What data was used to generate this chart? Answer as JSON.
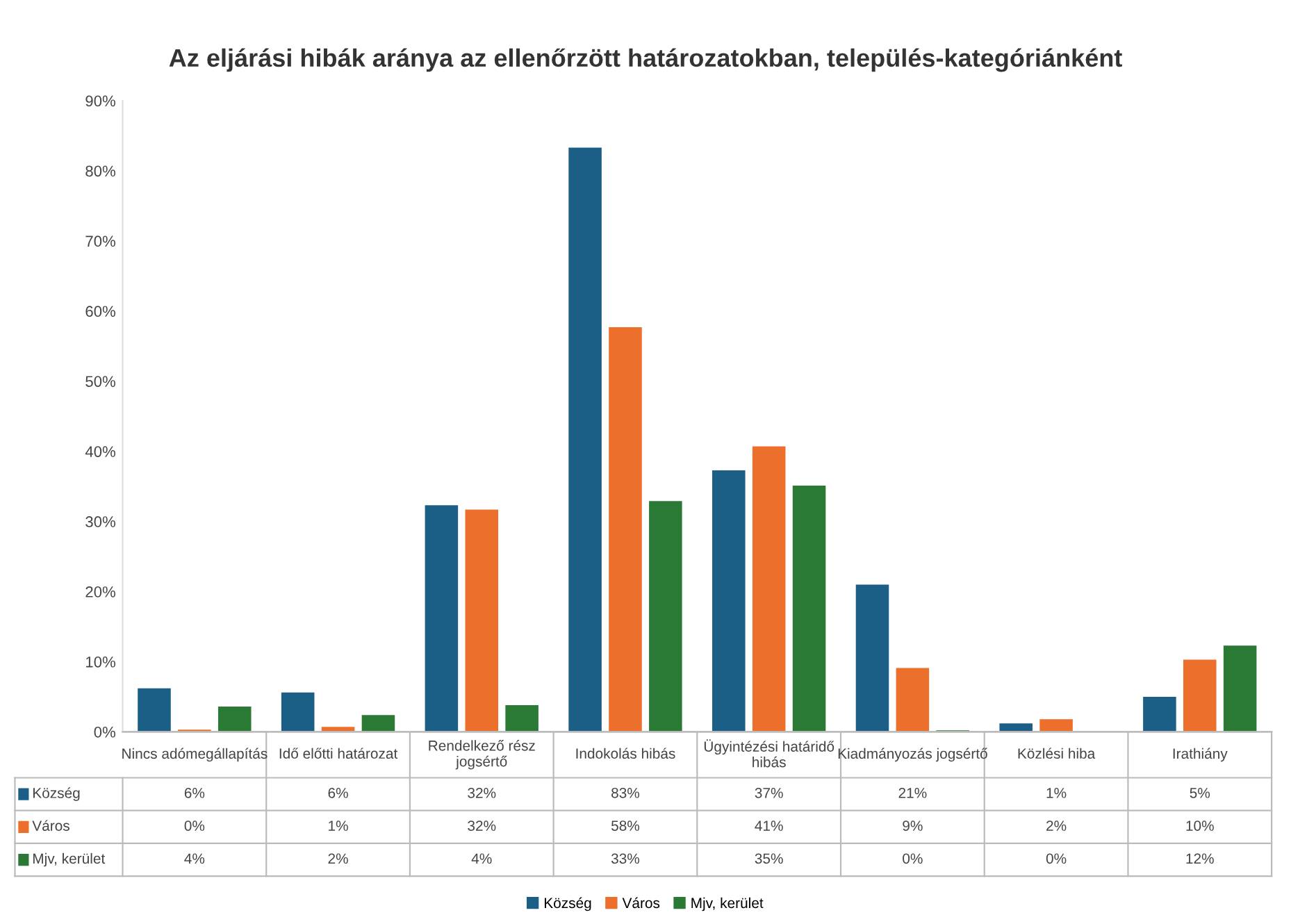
{
  "chart_data": {
    "type": "bar",
    "title": "Az eljárási hibák aránya az ellenőrzött határozatokban, település-kategóriánként",
    "categories": [
      "Nincs adómegállapítás",
      "Idő előtti határozat",
      "Rendelkező rész\njogsértő",
      "Indokolás hibás",
      "Ügyintézési határidő\nhibás",
      "Kiadmányozás jogsértő",
      "Közlési hiba",
      "Irathiány"
    ],
    "series": [
      {
        "name": "Község",
        "color": "#1b5e86",
        "values": [
          6.2,
          5.6,
          32.3,
          83.3,
          37.3,
          21.0,
          1.2,
          5.0
        ],
        "value_labels": [
          "6%",
          "6%",
          "32%",
          "83%",
          "37%",
          "21%",
          "1%",
          "5%"
        ]
      },
      {
        "name": "Város",
        "color": "#ec6f2c",
        "values": [
          0.3,
          0.7,
          31.7,
          57.7,
          40.7,
          9.1,
          1.8,
          10.3
        ],
        "value_labels": [
          "0%",
          "1%",
          "32%",
          "58%",
          "41%",
          "9%",
          "2%",
          "10%"
        ]
      },
      {
        "name": "Mjv, kerület",
        "color": "#2a7a36",
        "values": [
          3.6,
          2.4,
          3.8,
          32.9,
          35.1,
          0.2,
          0.0,
          12.3
        ],
        "value_labels": [
          "4%",
          "2%",
          "4%",
          "33%",
          "35%",
          "0%",
          "0%",
          "12%"
        ]
      }
    ],
    "ylim": [
      0,
      90
    ],
    "yticks": [
      {
        "value": 0,
        "label": "0%"
      },
      {
        "value": 10,
        "label": "10%"
      },
      {
        "value": 20,
        "label": "20%"
      },
      {
        "value": 30,
        "label": "30%"
      },
      {
        "value": 40,
        "label": "40%"
      },
      {
        "value": 50,
        "label": "50%"
      },
      {
        "value": 60,
        "label": "60%"
      },
      {
        "value": 70,
        "label": "70%"
      },
      {
        "value": 80,
        "label": "80%"
      },
      {
        "value": 90,
        "label": "90%"
      }
    ],
    "grid": false,
    "legend": "bottom"
  }
}
